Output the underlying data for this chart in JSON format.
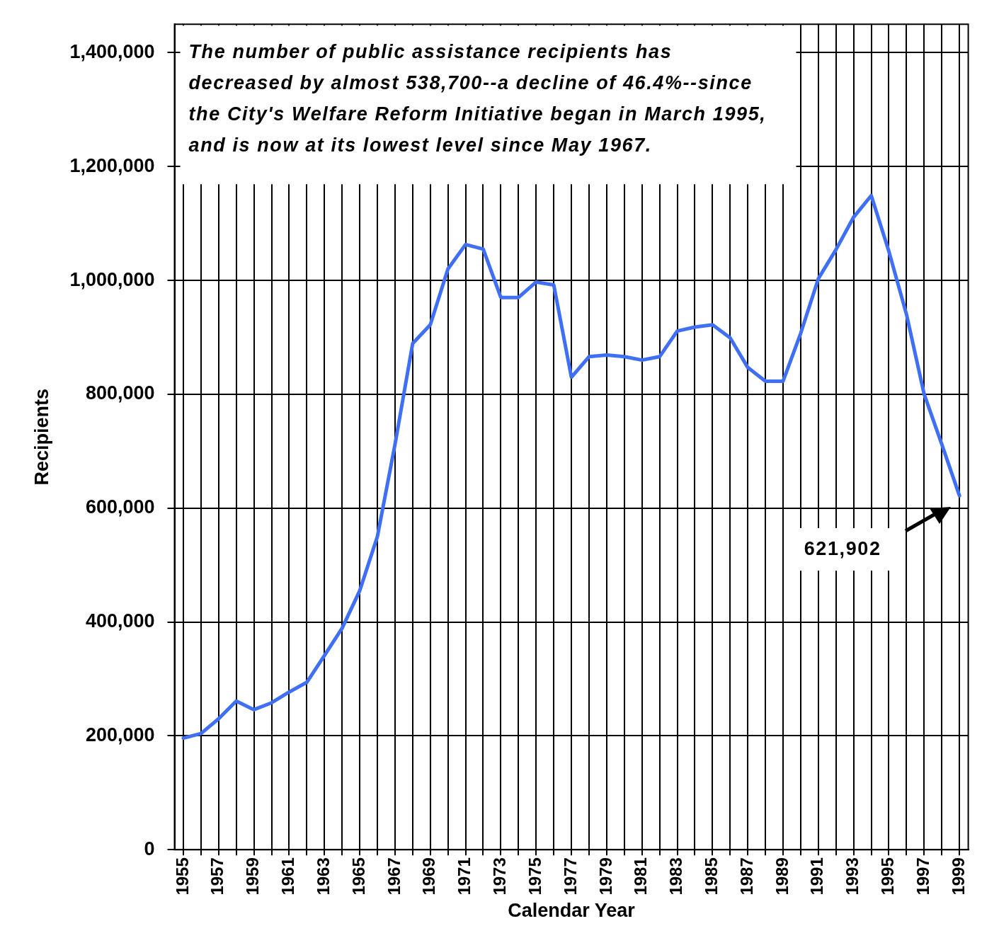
{
  "chart_data": {
    "type": "line",
    "xlabel": "Calendar Year",
    "ylabel": "Recipients",
    "categories": [
      "1955",
      null,
      "1957",
      null,
      "1959",
      null,
      "1961",
      null,
      "1963",
      null,
      "1965",
      null,
      "1967",
      null,
      "1969",
      null,
      "1971",
      null,
      "1973",
      null,
      "1975",
      null,
      "1977",
      null,
      "1979",
      null,
      "1981",
      null,
      "1983",
      null,
      "1985",
      null,
      "1987",
      null,
      "1989",
      null,
      "1991",
      null,
      "1993",
      null,
      "1995",
      null,
      "1997",
      null,
      "1999"
    ],
    "series": [
      {
        "color": "#3f6ff5",
        "values": [
          196000,
          204000,
          230000,
          261000,
          246000,
          258000,
          277000,
          294000,
          341000,
          389000,
          455000,
          550000,
          712000,
          889000,
          922000,
          1020000,
          1063000,
          1055000,
          970000,
          970000,
          997000,
          992000,
          830000,
          866000,
          869000,
          866000,
          860000,
          866000,
          911000,
          918000,
          922000,
          899000,
          847000,
          823000,
          823000,
          907000,
          1003000,
          1054000,
          1111000,
          1149000,
          1051000,
          940000,
          800000,
          712000,
          621902
        ]
      }
    ],
    "ylim": [
      0,
      1450000
    ],
    "yticks": [
      0,
      {
        "value": 200000,
        "label": "200,000"
      },
      {
        "value": 400000,
        "label": "400,000"
      },
      {
        "value": 600000,
        "label": "600,000"
      },
      {
        "value": 800000,
        "label": "800,000"
      },
      {
        "value": 1000000,
        "label": "1,000,000"
      },
      {
        "value": 1200000,
        "label": "1,200,000"
      },
      {
        "value": 1400000,
        "label": "1,400,000"
      }
    ],
    "grid": true,
    "legend": false,
    "marker": "none",
    "line_style": "solid",
    "annotations": [
      "The number of public assistance recipients has decreased by almost 538,700--a decline of 46.4%--since the City's Welfare Reform Initiative began in March 1995, and is now at its lowest level since May 1967.",
      "621,902"
    ]
  }
}
